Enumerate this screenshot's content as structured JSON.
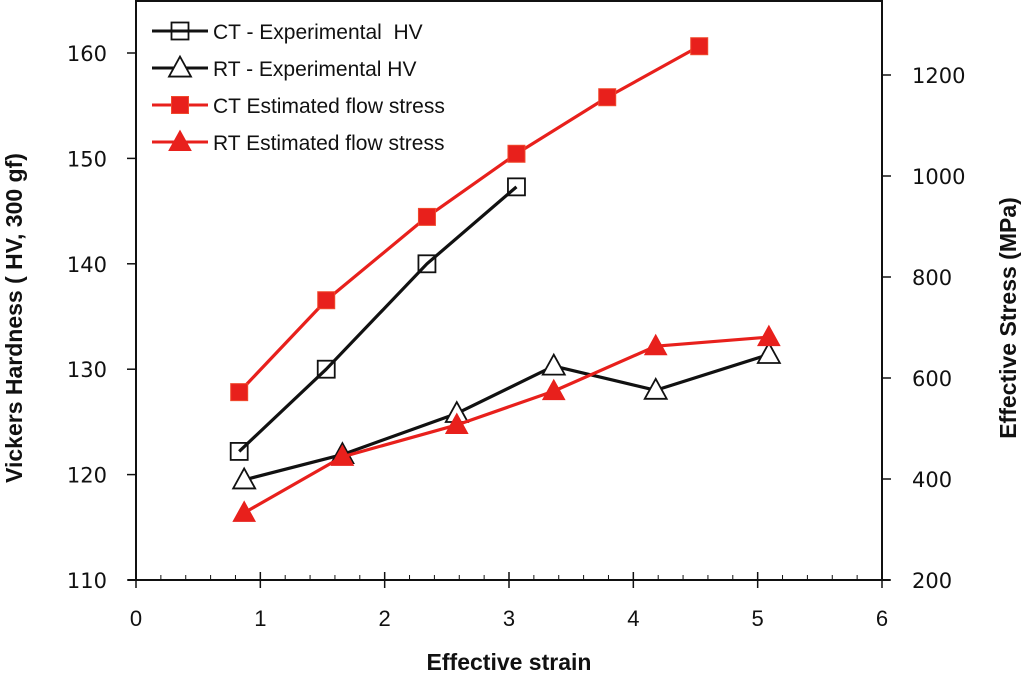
{
  "chart_data": {
    "type": "line",
    "title": "",
    "xlabel": "Effective strain",
    "ylabel": "Vickers Hardness ( HV, 300 gf)",
    "y2label": "Effective Stress  (MPa)",
    "xlim": [
      0,
      6
    ],
    "ylim": [
      110,
      165
    ],
    "y2lim": [
      200,
      1300
    ],
    "x_ticks": [
      0,
      1,
      2,
      3,
      4,
      5,
      6
    ],
    "x_tick_labels": [
      "0",
      "1",
      "2",
      "3",
      "4",
      "5",
      "6"
    ],
    "x_minor_step": 0.2,
    "y_ticks": [
      110,
      120,
      130,
      140,
      150,
      160
    ],
    "y_tick_labels": [
      "110",
      "120",
      "130",
      "140",
      "150",
      "160"
    ],
    "y2_ticks": [
      200,
      400,
      600,
      800,
      1000,
      1200
    ],
    "y2_tick_labels": [
      "200",
      "400",
      "600",
      "800",
      "1000",
      "1200"
    ],
    "grid": false,
    "legend_position": "top-left",
    "series": [
      {
        "name": "CT - Experimental  HV",
        "axis": "left",
        "color": "#000000",
        "marker": "square-open",
        "x": [
          0.83,
          1.53,
          2.34,
          3.06
        ],
        "values": [
          122.2,
          130.0,
          140.0,
          147.3
        ]
      },
      {
        "name": "RT - Experimental HV",
        "axis": "left",
        "color": "#000000",
        "marker": "triangle-open",
        "x": [
          0.87,
          1.66,
          2.58,
          3.36,
          4.18,
          5.09
        ],
        "values": [
          119.5,
          121.9,
          125.8,
          130.3,
          128.0,
          131.4
        ]
      },
      {
        "name": "CT Estimated flow stress",
        "axis": "right",
        "color": "#e8201c",
        "marker": "square-filled",
        "x": [
          0.83,
          1.53,
          2.34,
          3.06,
          3.79,
          4.53
        ],
        "values": [
          572,
          754,
          919,
          1044,
          1156,
          1257
        ]
      },
      {
        "name": "RT Estimated flow stress",
        "axis": "right",
        "color": "#e8201c",
        "marker": "triangle-filled",
        "x": [
          0.87,
          1.66,
          2.58,
          3.36,
          4.18,
          5.09
        ],
        "values": [
          333,
          444,
          507,
          574,
          663,
          681
        ]
      }
    ]
  }
}
